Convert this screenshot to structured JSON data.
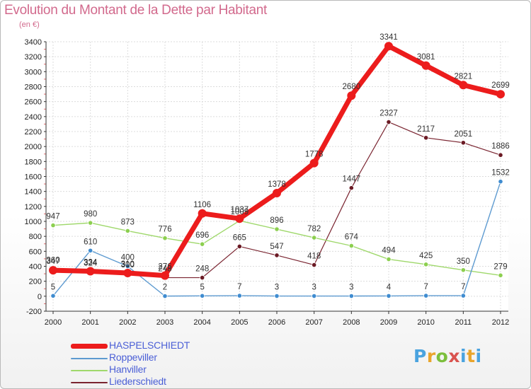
{
  "title": "Evolution du Montant de la Dette par Habitant",
  "subtitle": "(en €)",
  "logo_text": "Proxiti",
  "chart_data": {
    "type": "line",
    "x": [
      "2000",
      "2001",
      "2002",
      "2003",
      "2004",
      "2005",
      "2006",
      "2007",
      "2008",
      "2009",
      "2010",
      "2011",
      "2012"
    ],
    "ylim": [
      -200,
      3400
    ],
    "yticks": [
      -200,
      0,
      200,
      400,
      600,
      800,
      1000,
      1200,
      1400,
      1600,
      1800,
      2000,
      2200,
      2400,
      2600,
      2800,
      3000,
      3200,
      3400
    ],
    "grid": true,
    "legend_position": "bottom-left",
    "series": [
      {
        "name": "Liederschiedt",
        "color": "#7a2430",
        "markerColor": "#6b1a24",
        "width": 1.2,
        "marker": 3.2,
        "values": [
          360,
          324,
          300,
          248,
          248,
          665,
          547,
          418,
          1447,
          2327,
          2117,
          2051,
          1886
        ]
      },
      {
        "name": "Hanviller",
        "color": "#9fd86b",
        "markerColor": "#8ccf4f",
        "width": 1.4,
        "marker": 3.2,
        "values": [
          947,
          980,
          873,
          776,
          696,
          1009,
          896,
          782,
          674,
          494,
          425,
          350,
          279
        ]
      },
      {
        "name": "Roppeviller",
        "color": "#5d9ad0",
        "markerColor": "#3f8cd0",
        "width": 1.4,
        "marker": 3.2,
        "values": [
          5,
          610,
          400,
          2,
          5,
          7,
          3,
          3,
          3,
          4,
          7,
          7,
          1532
        ]
      },
      {
        "name": "HASPELSCHIEDT",
        "color": "#ec1c1c",
        "markerColor": "#ec1c1c",
        "width": 7,
        "marker": 6,
        "values": [
          347,
          334,
          310,
          276,
          1106,
          1037,
          1378,
          1778,
          2680,
          3341,
          3081,
          2821,
          2699
        ]
      }
    ],
    "labels": [
      {
        "series": "HASPELSCHIEDT",
        "text": [
          "347",
          "334",
          "310",
          "276",
          "1106",
          "1037",
          "1378",
          "1778",
          "2680",
          "3341",
          "3081",
          "2821",
          "2699"
        ]
      },
      {
        "series": "Liederschiedt",
        "text": [
          "360",
          "324",
          "300",
          "248",
          "248",
          "665",
          "547",
          "418",
          "1447",
          "2327",
          "2117",
          "2051",
          "1886"
        ]
      },
      {
        "series": "Hanviller",
        "text": [
          "947",
          "980",
          "873",
          "776",
          "696",
          "1009",
          "896",
          "782",
          "674",
          "494",
          "425",
          "350",
          "279"
        ]
      },
      {
        "series": "Roppeviller",
        "text": [
          "5",
          "610",
          "400",
          "2",
          "5",
          "7",
          "3",
          "3",
          "3",
          "4",
          "7",
          "7",
          "1532"
        ]
      }
    ]
  },
  "legend": [
    {
      "label": "HASPELSCHIEDT",
      "color": "#ec1c1c"
    },
    {
      "label": "Roppeviller",
      "color": "#5d9ad0"
    },
    {
      "label": "Hanviller",
      "color": "#9fd86b"
    },
    {
      "label": "Liederschiedt",
      "color": "#7a2430"
    }
  ]
}
